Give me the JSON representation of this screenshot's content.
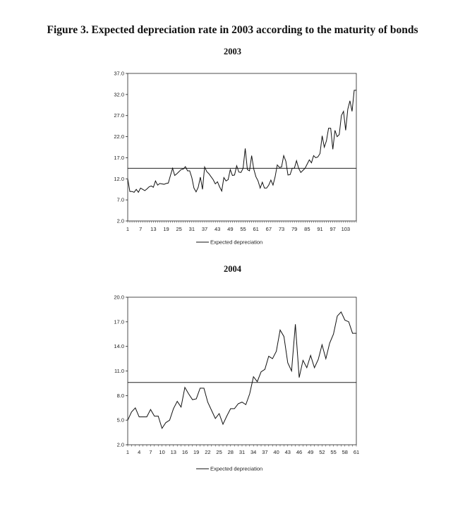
{
  "figure_title": "Figure 3. Expected depreciation rate in 2003 according to the maturity of bonds",
  "chart_data": [
    {
      "type": "line",
      "title": "2003",
      "xlabel": "",
      "ylabel": "",
      "ylim": [
        2.0,
        37.0
      ],
      "yticks": [
        "2.0",
        "7.0",
        "12.0",
        "17.0",
        "22.0",
        "27.0",
        "32.0",
        "37.0"
      ],
      "xticks": [
        "1",
        "7",
        "13",
        "19",
        "25",
        "31",
        "37",
        "43",
        "49",
        "55",
        "61",
        "67",
        "73",
        "79",
        "85",
        "91",
        "97",
        "103"
      ],
      "x_count": 108,
      "grid": false,
      "legend": "bottom",
      "reference_line": 14.5,
      "series": [
        {
          "name": "Expected depreciation",
          "values": [
            12.0,
            9.0,
            9.0,
            8.8,
            9.5,
            8.8,
            9.8,
            9.5,
            9.2,
            9.6,
            10.1,
            10.3,
            10.0,
            11.5,
            10.5,
            10.9,
            10.8,
            10.7,
            10.9,
            11.0,
            12.8,
            14.5,
            12.8,
            13.2,
            13.7,
            14.2,
            14.3,
            14.9,
            13.9,
            13.9,
            12.3,
            9.8,
            8.9,
            10.0,
            12.4,
            9.5,
            14.8,
            13.7,
            13.2,
            12.5,
            11.8,
            10.8,
            11.3,
            10.1,
            9.1,
            12.3,
            11.5,
            11.8,
            14.2,
            12.8,
            12.9,
            15.1,
            13.6,
            13.5,
            14.5,
            19.2,
            14.2,
            13.9,
            17.5,
            14.3,
            12.5,
            11.5,
            9.8,
            11.2,
            9.8,
            9.8,
            10.5,
            11.7,
            10.5,
            12.5,
            15.3,
            14.7,
            14.8,
            17.5,
            16.2,
            12.9,
            13.0,
            14.5,
            14.5,
            16.3,
            14.5,
            13.5,
            14.0,
            14.5,
            15.5,
            16.5,
            15.8,
            17.5,
            17.0,
            17.2,
            18.0,
            22.2,
            19.5,
            21.0,
            24.0,
            24.0,
            19.0,
            23.5,
            22.0,
            22.5,
            27.0,
            28.0,
            23.5,
            28.5,
            30.5,
            28.0,
            33.0,
            33.0
          ]
        }
      ]
    },
    {
      "type": "line",
      "title": "2004",
      "xlabel": "",
      "ylabel": "",
      "ylim": [
        2.0,
        20.0
      ],
      "yticks": [
        "2.0",
        "5.0",
        "8.0",
        "11.0",
        "14.0",
        "17.0",
        "20.0"
      ],
      "xticks": [
        "1",
        "4",
        "7",
        "10",
        "13",
        "16",
        "19",
        "22",
        "25",
        "28",
        "31",
        "34",
        "37",
        "40",
        "43",
        "46",
        "49",
        "52",
        "55",
        "58",
        "61"
      ],
      "x_count": 61,
      "grid": false,
      "legend": "bottom",
      "reference_line": 9.6,
      "series": [
        {
          "name": "Expected depreciation",
          "values": [
            5.0,
            6.0,
            6.5,
            5.4,
            5.4,
            5.4,
            6.3,
            5.5,
            5.5,
            4.0,
            4.7,
            5.0,
            6.4,
            7.3,
            6.6,
            9.0,
            8.2,
            7.5,
            7.6,
            8.9,
            8.9,
            7.2,
            6.2,
            5.2,
            5.8,
            4.5,
            5.5,
            6.4,
            6.4,
            7.0,
            7.2,
            6.9,
            8.2,
            10.3,
            9.7,
            10.9,
            11.2,
            12.8,
            12.5,
            13.4,
            16.0,
            15.2,
            12.0,
            11.0,
            16.7,
            10.2,
            12.3,
            11.4,
            12.9,
            11.4,
            12.4,
            14.2,
            12.5,
            14.4,
            15.5,
            17.7,
            18.2,
            17.2,
            17.0,
            15.6,
            15.6
          ]
        }
      ]
    }
  ]
}
